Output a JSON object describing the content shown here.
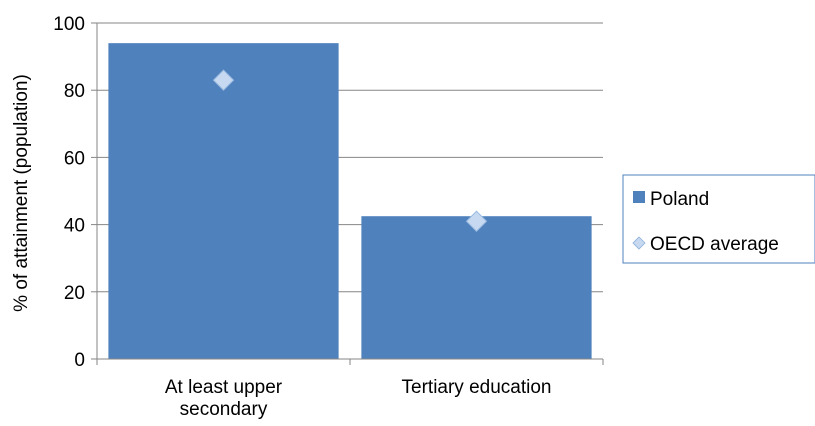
{
  "chart_data": {
    "type": "bar",
    "categories": [
      "At least upper secondary",
      "Tertiary education"
    ],
    "category_label_lines": [
      [
        "At least upper",
        "secondary"
      ],
      [
        "Tertiary education"
      ]
    ],
    "series": [
      {
        "name": "Poland",
        "kind": "bar",
        "values": [
          94,
          42.5
        ],
        "color": "#4F81BD"
      },
      {
        "name": "OECD average",
        "kind": "marker",
        "marker": "diamond",
        "values": [
          83,
          41
        ],
        "color": "#C6D9F1"
      }
    ],
    "ylabel": "% of attainment  (population)",
    "ylim": [
      0,
      100
    ],
    "yticks": [
      0,
      20,
      40,
      60,
      80,
      100
    ],
    "grid": true,
    "legend_position": "right"
  }
}
